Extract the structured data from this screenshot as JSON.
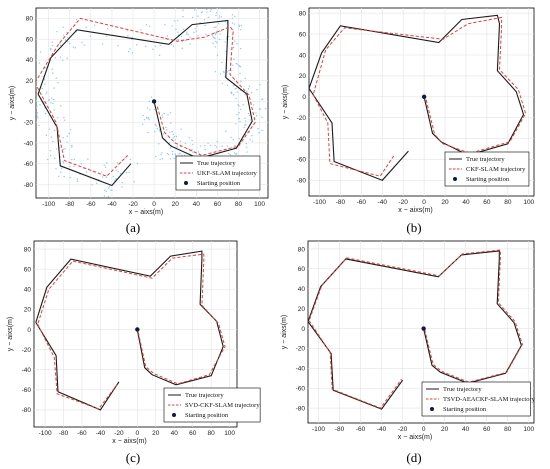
{
  "chart_data": [
    {
      "type": "line",
      "panel_label": "(a)",
      "xlabel": "x − aixs(m)",
      "ylabel": "y − aixs(m)",
      "xlim": [
        -112,
        108
      ],
      "ylim": [
        -93,
        90
      ],
      "xticks": [
        -100,
        -80,
        -60,
        -40,
        -20,
        0,
        20,
        40,
        60,
        80,
        100
      ],
      "yticks": [
        -80,
        -60,
        -40,
        -20,
        0,
        20,
        40,
        60,
        80
      ],
      "grid": true,
      "legend_position": "bottom-right",
      "has_noise": true,
      "start": {
        "name": "Starting position",
        "x": 0,
        "y": 0
      },
      "series": [
        {
          "name": "True trajectory",
          "style": "solid",
          "color": "#1a1a1a",
          "x": [
            -110,
            -92,
            -89,
            -40,
            -22,
            null,
            0,
            8,
            16,
            42,
            78,
            93,
            88,
            68,
            70,
            70,
            36,
            14,
            -73,
            -98,
            -110
          ],
          "y": [
            7,
            -25,
            -62,
            -81,
            -60,
            null,
            0,
            -35,
            -43,
            -55,
            -45,
            -19,
            7,
            23,
            70,
            78,
            74,
            55,
            69,
            42,
            7
          ]
        },
        {
          "name": "UKF-SLAM trajectory",
          "style": "dashed",
          "color": "#e04040",
          "x": [
            -113,
            -93,
            -85,
            -45,
            -25,
            null,
            3,
            10,
            20,
            45,
            80,
            96,
            90,
            72,
            75,
            72,
            48,
            22,
            -70,
            -90,
            -113
          ],
          "y": [
            18,
            -20,
            -57,
            -72,
            -52,
            null,
            -5,
            -30,
            -40,
            -52,
            -43,
            -20,
            6,
            26,
            68,
            72,
            62,
            58,
            80,
            56,
            18
          ]
        }
      ]
    },
    {
      "type": "line",
      "panel_label": "(b)",
      "xlabel": "x − aixs(m)",
      "ylabel": "y − aixs(m)",
      "xlim": [
        -110,
        105
      ],
      "ylim": [
        -95,
        85
      ],
      "xticks": [
        -100,
        -80,
        -60,
        -40,
        -20,
        0,
        20,
        40,
        60,
        80,
        100
      ],
      "yticks": [
        -80,
        -60,
        -40,
        -20,
        0,
        20,
        40,
        60,
        80
      ],
      "grid": true,
      "legend_position": "bottom-right",
      "has_noise": false,
      "start": {
        "name": "Starting position",
        "x": 0,
        "y": 0
      },
      "series": [
        {
          "name": "True trajectory",
          "style": "solid",
          "color": "#1a1a1a",
          "x": [
            -110,
            -88,
            -86,
            -40,
            -15,
            null,
            0,
            8,
            16,
            42,
            80,
            95,
            88,
            70,
            72,
            70,
            36,
            14,
            -80,
            -98,
            -110
          ],
          "y": [
            8,
            -25,
            -62,
            -80,
            -52,
            null,
            0,
            -35,
            -43,
            -56,
            -45,
            -17,
            5,
            25,
            70,
            78,
            74,
            52,
            68,
            42,
            8
          ]
        },
        {
          "name": "CKF-SLAM trajectory",
          "style": "dashed",
          "color": "#e04040",
          "x": [
            -106,
            -92,
            -90,
            -42,
            -28,
            null,
            2,
            10,
            18,
            44,
            82,
            97,
            90,
            72,
            74,
            74,
            42,
            18,
            -76,
            -94,
            -106
          ],
          "y": [
            2,
            -25,
            -64,
            -76,
            -55,
            null,
            -3,
            -36,
            -45,
            -54,
            -43,
            -16,
            7,
            26,
            67,
            76,
            70,
            55,
            66,
            45,
            2
          ]
        }
      ]
    },
    {
      "type": "line",
      "panel_label": "(c)",
      "xlabel": "x − aixs(m)",
      "ylabel": "y − aixs(m)",
      "xlim": [
        -112,
        108
      ],
      "ylim": [
        -97,
        88
      ],
      "xticks": [
        -100,
        -80,
        -60,
        -40,
        -20,
        0,
        20,
        40,
        60,
        80,
        100
      ],
      "yticks": [
        -80,
        -60,
        -40,
        -20,
        0,
        20,
        40,
        60,
        80
      ],
      "grid": true,
      "legend_position": "bottom-right",
      "has_noise": false,
      "start": {
        "name": "Starting position",
        "x": 0,
        "y": 0
      },
      "series": [
        {
          "name": "True trajectory",
          "style": "solid",
          "color": "#1a1a1a",
          "x": [
            -110,
            -88,
            -86,
            -40,
            -20,
            null,
            0,
            8,
            16,
            42,
            80,
            93,
            86,
            68,
            70,
            70,
            36,
            14,
            -72,
            -98,
            -110
          ],
          "y": [
            7,
            -26,
            -62,
            -80,
            -52,
            null,
            0,
            -38,
            -45,
            -55,
            -46,
            -17,
            8,
            25,
            70,
            78,
            73,
            53,
            70,
            42,
            7
          ]
        },
        {
          "name": "SVD-CKF-SLAM trajectory",
          "style": "dashed",
          "color": "#e04040",
          "x": [
            -108,
            -90,
            -87,
            -42,
            -22,
            null,
            1,
            9,
            18,
            44,
            78,
            95,
            88,
            70,
            72,
            72,
            38,
            16,
            -70,
            -96,
            -108
          ],
          "y": [
            5,
            -28,
            -64,
            -79,
            -55,
            null,
            -3,
            -37,
            -44,
            -54,
            -45,
            -17,
            6,
            24,
            68,
            75,
            71,
            51,
            68,
            40,
            5
          ]
        }
      ]
    },
    {
      "type": "line",
      "panel_label": "(d)",
      "xlabel": "x − aixs(m)",
      "ylabel": "y − aixs(m)",
      "xlim": [
        -110,
        105
      ],
      "ylim": [
        -95,
        88
      ],
      "xticks": [
        -100,
        -80,
        -60,
        -40,
        -20,
        0,
        20,
        40,
        60,
        80,
        100
      ],
      "yticks": [
        -80,
        -60,
        -40,
        -20,
        0,
        20,
        40,
        60,
        80
      ],
      "grid": true,
      "legend_position": "bottom-right",
      "has_noise": false,
      "start": {
        "name": "Starting position",
        "x": 0,
        "y": 0
      },
      "series": [
        {
          "name": "True trajectory",
          "style": "solid",
          "color": "#1a1a1a",
          "x": [
            -110,
            -88,
            -86,
            -40,
            -20,
            null,
            0,
            8,
            16,
            42,
            78,
            93,
            86,
            70,
            72,
            72,
            36,
            14,
            -74,
            -98,
            -110
          ],
          "y": [
            7,
            -25,
            -62,
            -81,
            -52,
            null,
            0,
            -37,
            -44,
            -55,
            -45,
            -17,
            6,
            25,
            70,
            78,
            74,
            52,
            70,
            42,
            7
          ]
        },
        {
          "name": "TSVD-AEACKF-SLAM trajectory",
          "style": "dashed",
          "color": "#e04040",
          "x": [
            -109,
            -89,
            -87,
            -41,
            -21,
            null,
            1,
            9,
            17,
            43,
            79,
            94,
            87,
            71,
            73,
            73,
            37,
            15,
            -73,
            -97,
            -109
          ],
          "y": [
            8,
            -24,
            -61,
            -80,
            -51,
            null,
            -1,
            -36,
            -43,
            -54,
            -44,
            -16,
            7,
            26,
            71,
            79,
            75,
            53,
            71,
            43,
            8
          ]
        }
      ]
    }
  ]
}
